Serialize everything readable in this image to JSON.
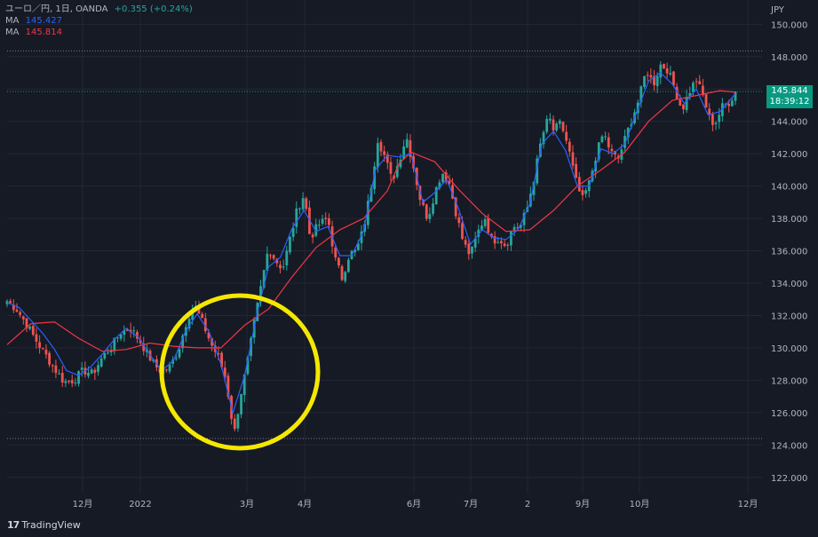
{
  "header": {
    "symbol": "ユーロ／円, 1日, OANDA",
    "change": "+0.355 (+0.24%)",
    "ma1_label": "MA",
    "ma1_value": "145.427",
    "ma2_label": "MA",
    "ma2_value": "145.814"
  },
  "price_tag": {
    "price": "145.844",
    "countdown": "18:39:12"
  },
  "brand": "TradingView",
  "colors": {
    "up": "#26a69a",
    "down": "#ef5350",
    "ma_fast": "#2962ff",
    "ma_slow": "#f23645",
    "bg": "#161a25",
    "highlight": "#f5e800"
  },
  "chart_data": {
    "type": "candlestick",
    "currency_label": "JPY",
    "ylim": [
      121,
      151.5
    ],
    "y_ticks": [
      "150.000",
      "148.000",
      "146.000",
      "144.000",
      "142.000",
      "140.000",
      "138.000",
      "136.000",
      "134.000",
      "132.000",
      "130.000",
      "128.000",
      "126.000",
      "124.000",
      "122.000"
    ],
    "x_ticks": [
      "12月",
      "2022",
      "3月",
      "4月",
      "6月",
      "7月",
      "2",
      "9月",
      "10月",
      "12月"
    ],
    "reference_lines": [
      148.35,
      124.4
    ],
    "last_price": 145.844,
    "close_path": [
      [
        0,
        132.9
      ],
      [
        8,
        132.4
      ],
      [
        16,
        131.5
      ],
      [
        24,
        130.5
      ],
      [
        32,
        129.6
      ],
      [
        40,
        128.7
      ],
      [
        48,
        127.9
      ],
      [
        56,
        128.0
      ],
      [
        64,
        128.6
      ],
      [
        72,
        128.4
      ],
      [
        80,
        129.4
      ],
      [
        88,
        130.1
      ],
      [
        96,
        131.0
      ],
      [
        104,
        131.2
      ],
      [
        112,
        130.4
      ],
      [
        120,
        129.4
      ],
      [
        128,
        128.6
      ],
      [
        136,
        128.7
      ],
      [
        144,
        129.8
      ],
      [
        152,
        131.9
      ],
      [
        158,
        132.6
      ],
      [
        166,
        131.3
      ],
      [
        172,
        130.2
      ],
      [
        178,
        129.4
      ],
      [
        184,
        128.1
      ],
      [
        188,
        126.2
      ],
      [
        191,
        124.6
      ],
      [
        196,
        126.9
      ],
      [
        202,
        129.0
      ],
      [
        208,
        131.5
      ],
      [
        214,
        133.9
      ],
      [
        220,
        136.2
      ],
      [
        226,
        135.4
      ],
      [
        232,
        134.9
      ],
      [
        238,
        136.7
      ],
      [
        244,
        138.5
      ],
      [
        250,
        139.5
      ],
      [
        255,
        136.8
      ],
      [
        262,
        137.6
      ],
      [
        270,
        138.0
      ],
      [
        276,
        135.5
      ],
      [
        282,
        134.3
      ],
      [
        288,
        135.8
      ],
      [
        294,
        136.0
      ],
      [
        300,
        137.4
      ],
      [
        306,
        139.8
      ],
      [
        312,
        142.9
      ],
      [
        318,
        141.8
      ],
      [
        324,
        140.3
      ],
      [
        330,
        141.6
      ],
      [
        336,
        143.1
      ],
      [
        342,
        141.2
      ],
      [
        348,
        139.1
      ],
      [
        354,
        138.0
      ],
      [
        360,
        139.6
      ],
      [
        366,
        140.9
      ],
      [
        372,
        140.2
      ],
      [
        378,
        138.3
      ],
      [
        384,
        136.5
      ],
      [
        390,
        135.7
      ],
      [
        396,
        137.1
      ],
      [
        402,
        138.1
      ],
      [
        408,
        136.6
      ],
      [
        414,
        136.8
      ],
      [
        420,
        136.3
      ],
      [
        426,
        137.5
      ],
      [
        432,
        137.5
      ],
      [
        438,
        138.7
      ],
      [
        444,
        140.7
      ],
      [
        450,
        143.0
      ],
      [
        456,
        144.3
      ],
      [
        460,
        143.4
      ],
      [
        466,
        143.9
      ],
      [
        472,
        142.5
      ],
      [
        478,
        140.5
      ],
      [
        484,
        139.1
      ],
      [
        490,
        140.2
      ],
      [
        496,
        142.0
      ],
      [
        502,
        143.3
      ],
      [
        508,
        142.1
      ],
      [
        514,
        141.6
      ],
      [
        520,
        142.9
      ],
      [
        526,
        144.2
      ],
      [
        532,
        145.4
      ],
      [
        538,
        147.2
      ],
      [
        544,
        146.3
      ],
      [
        550,
        147.5
      ],
      [
        556,
        147.2
      ],
      [
        562,
        146.0
      ],
      [
        568,
        144.7
      ],
      [
        574,
        145.8
      ],
      [
        580,
        146.6
      ],
      [
        586,
        145.5
      ],
      [
        592,
        144.0
      ],
      [
        596,
        143.9
      ],
      [
        602,
        144.9
      ],
      [
        608,
        145.2
      ],
      [
        613,
        145.8
      ]
    ],
    "series": [
      {
        "name": "MA",
        "values": [
          [
            0,
            130.2
          ],
          [
            20,
            131.5
          ],
          [
            40,
            131.6
          ],
          [
            60,
            130.6
          ],
          [
            80,
            129.8
          ],
          [
            100,
            129.9
          ],
          [
            120,
            130.3
          ],
          [
            140,
            130.1
          ],
          [
            160,
            130.0
          ],
          [
            180,
            130.0
          ],
          [
            200,
            131.4
          ],
          [
            220,
            132.4
          ],
          [
            240,
            134.4
          ],
          [
            260,
            136.2
          ],
          [
            280,
            137.3
          ],
          [
            300,
            138.0
          ],
          [
            320,
            139.7
          ],
          [
            330,
            141.4
          ],
          [
            340,
            142.1
          ],
          [
            360,
            141.5
          ],
          [
            380,
            139.8
          ],
          [
            400,
            138.3
          ],
          [
            420,
            137.2
          ],
          [
            440,
            137.3
          ],
          [
            460,
            138.5
          ],
          [
            480,
            140.0
          ],
          [
            500,
            141.0
          ],
          [
            520,
            142.1
          ],
          [
            540,
            144.0
          ],
          [
            560,
            145.3
          ],
          [
            580,
            145.6
          ],
          [
            600,
            145.9
          ],
          [
            613,
            145.8
          ]
        ]
      },
      {
        "name": "MA",
        "values": [
          [
            0,
            132.8
          ],
          [
            10,
            132.5
          ],
          [
            20,
            131.7
          ],
          [
            30,
            130.9
          ],
          [
            40,
            129.9
          ],
          [
            50,
            128.6
          ],
          [
            60,
            128.3
          ],
          [
            70,
            128.8
          ],
          [
            80,
            129.6
          ],
          [
            90,
            130.5
          ],
          [
            100,
            131.2
          ],
          [
            110,
            130.7
          ],
          [
            120,
            129.6
          ],
          [
            130,
            128.6
          ],
          [
            140,
            129.2
          ],
          [
            150,
            131.0
          ],
          [
            160,
            132.1
          ],
          [
            170,
            131.0
          ],
          [
            180,
            129.0
          ],
          [
            190,
            126.0
          ],
          [
            200,
            128.3
          ],
          [
            210,
            132.0
          ],
          [
            220,
            135.0
          ],
          [
            230,
            135.6
          ],
          [
            240,
            137.4
          ],
          [
            250,
            138.5
          ],
          [
            260,
            137.2
          ],
          [
            270,
            137.5
          ],
          [
            280,
            135.7
          ],
          [
            290,
            135.7
          ],
          [
            300,
            137.2
          ],
          [
            310,
            141.0
          ],
          [
            320,
            141.9
          ],
          [
            330,
            141.8
          ],
          [
            340,
            142.0
          ],
          [
            350,
            139.0
          ],
          [
            360,
            139.6
          ],
          [
            370,
            140.4
          ],
          [
            380,
            138.6
          ],
          [
            390,
            136.4
          ],
          [
            400,
            137.3
          ],
          [
            410,
            136.8
          ],
          [
            420,
            136.7
          ],
          [
            430,
            137.3
          ],
          [
            440,
            138.9
          ],
          [
            450,
            142.6
          ],
          [
            460,
            143.4
          ],
          [
            470,
            142.2
          ],
          [
            480,
            140.0
          ],
          [
            490,
            140.0
          ],
          [
            500,
            142.3
          ],
          [
            510,
            142.0
          ],
          [
            520,
            142.6
          ],
          [
            530,
            144.6
          ],
          [
            540,
            146.5
          ],
          [
            550,
            147.0
          ],
          [
            560,
            146.3
          ],
          [
            570,
            145.1
          ],
          [
            580,
            146.0
          ],
          [
            590,
            144.4
          ],
          [
            600,
            144.6
          ],
          [
            613,
            145.7
          ]
        ]
      }
    ]
  }
}
